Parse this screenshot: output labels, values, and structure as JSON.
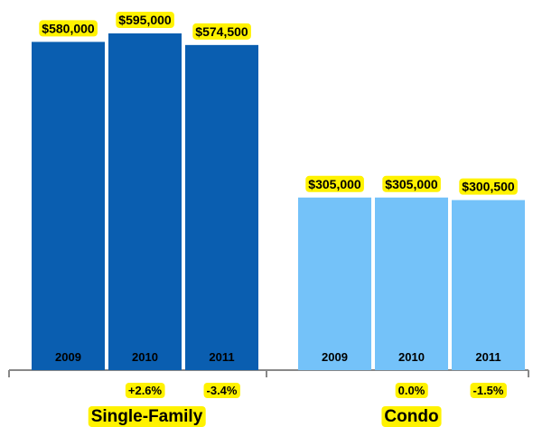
{
  "chart_data": {
    "type": "bar",
    "ylim": [
      0,
      650000
    ],
    "groups": [
      {
        "name": "Single-Family",
        "color": "#0a5eb0",
        "bars": [
          {
            "year": "2009",
            "value": 580000,
            "label": "$580,000",
            "change": ""
          },
          {
            "year": "2010",
            "value": 595000,
            "label": "$595,000",
            "change": "+2.6%"
          },
          {
            "year": "2011",
            "value": 574500,
            "label": "$574,500",
            "change": "-3.4%"
          }
        ]
      },
      {
        "name": "Condo",
        "color": "#74c2f9",
        "bars": [
          {
            "year": "2009",
            "value": 305000,
            "label": "$305,000",
            "change": ""
          },
          {
            "year": "2010",
            "value": 305000,
            "label": "$305,000",
            "change": "0.0%"
          },
          {
            "year": "2011",
            "value": 300500,
            "label": "$300,500",
            "change": "-1.5%"
          }
        ]
      }
    ],
    "label_highlight_color": "#fff200",
    "axis_color": "#888888",
    "grid": false,
    "legend": "none"
  }
}
